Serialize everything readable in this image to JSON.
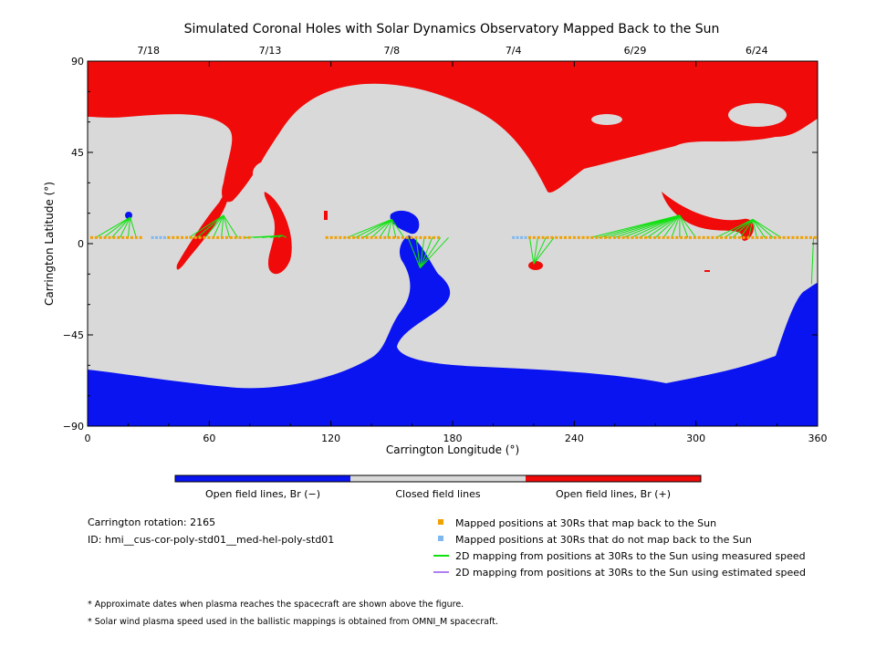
{
  "colors": {
    "open_negative": "#0a14f0",
    "closed": "#d9d9d9",
    "open_positive": "#f00a0a",
    "mapped_back": "#f0a000",
    "not_mapped": "#7fb8f0",
    "measured_line": "#10e010",
    "estimated_line": "#b07ff0"
  },
  "chart_data": {
    "type": "heatmap",
    "title": "Simulated Coronal Holes with Solar Dynamics Observatory Mapped Back to the Sun",
    "xlabel": "Carrington Longitude (°)",
    "ylabel": "Carrington Latitude (°)",
    "xlim": [
      0,
      360
    ],
    "ylim": [
      -90,
      90
    ],
    "x_ticks": [
      "0",
      "60",
      "120",
      "180",
      "240",
      "300",
      "360"
    ],
    "x_tick_values": [
      0,
      60,
      120,
      180,
      240,
      300,
      360
    ],
    "y_ticks": [
      "90",
      "45",
      "0",
      "−45",
      "−90"
    ],
    "y_tick_values": [
      90,
      45,
      0,
      -45,
      -90
    ],
    "top_dates": [
      {
        "label": "7/18",
        "lon": 30
      },
      {
        "label": "7/13",
        "lon": 90
      },
      {
        "label": "7/8",
        "lon": 150
      },
      {
        "label": "7/4",
        "lon": 210
      },
      {
        "label": "6/29",
        "lon": 270
      },
      {
        "label": "6/24",
        "lon": 330
      }
    ],
    "colorbar": [
      {
        "label": "Open field lines, Br (−)",
        "color": "#0a14f0"
      },
      {
        "label": "Closed field lines",
        "color": "#d9d9d9"
      },
      {
        "label": "Open field lines, Br (+)",
        "color": "#f00a0a"
      }
    ],
    "mapped_positions_30rs": {
      "lat": 3,
      "mapped_back_lon_ranges": [
        [
          2,
          28
        ],
        [
          40,
          80
        ],
        [
          118,
          175
        ],
        [
          218,
          360
        ]
      ],
      "not_mapped_lon_ranges": [
        [
          32,
          38
        ],
        [
          210,
          216
        ]
      ]
    },
    "footpoints": [
      {
        "lon": 21,
        "lat": 13,
        "from_lon": [
          4,
          26
        ]
      },
      {
        "lon": 67,
        "lat": 14,
        "from_lon": [
          50,
          75
        ]
      },
      {
        "lon": 96,
        "lat": 4,
        "from_lon": [
          78,
          100
        ]
      },
      {
        "lon": 150,
        "lat": 12,
        "from_lon": [
          128,
          158
        ]
      },
      {
        "lon": 164,
        "lat": -12,
        "from_lon": [
          158,
          180
        ]
      },
      {
        "lon": 220,
        "lat": -10,
        "from_lon": [
          218,
          232
        ]
      },
      {
        "lon": 292,
        "lat": 14,
        "from_lon": [
          248,
          300
        ]
      },
      {
        "lon": 328,
        "lat": 12,
        "from_lon": [
          310,
          345
        ]
      },
      {
        "lon": 357,
        "lat": -20,
        "from_lon": [
          358,
          360
        ]
      }
    ]
  },
  "legend": {
    "rotation": "Carrington rotation: 2165",
    "id": "ID: hmi__cus-cor-poly-std01__med-hel-poly-std01",
    "items": [
      {
        "label": "Mapped positions at 30Rs that map back to the Sun",
        "kind": "square",
        "color": "#f0a000"
      },
      {
        "label": "Mapped positions at 30Rs that do not map back to the Sun",
        "kind": "square",
        "color": "#7fb8f0"
      },
      {
        "label": "2D mapping from positions at 30Rs to the Sun using measured speed",
        "kind": "line",
        "color": "#10e010"
      },
      {
        "label": "2D mapping from positions at 30Rs to the Sun using estimated speed",
        "kind": "line",
        "color": "#b07ff0"
      }
    ]
  },
  "notes": [
    "* Approximate dates when plasma reaches the spacecraft are shown above the figure.",
    "* Solar wind plasma speed used in the ballistic mappings is obtained from OMNI_M spacecraft."
  ]
}
